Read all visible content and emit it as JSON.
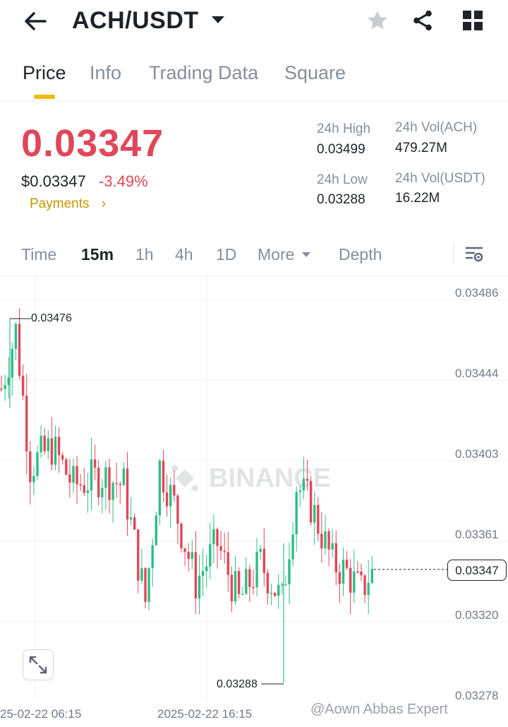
{
  "header": {
    "pair": "ACH/USDT"
  },
  "tabs": [
    {
      "label": "Price",
      "active": true
    },
    {
      "label": "Info",
      "active": false
    },
    {
      "label": "Trading Data",
      "active": false
    },
    {
      "label": "Square",
      "active": false
    }
  ],
  "price": {
    "last": "0.03347",
    "usd": "$0.03347",
    "change": "-3.49%",
    "payments": "Payments"
  },
  "stats": {
    "high_label": "24h High",
    "high": "0.03499",
    "low_label": "24h Low",
    "low": "0.03288",
    "vol_ach_label": "24h Vol(ACH)",
    "vol_ach": "479.27M",
    "vol_usdt_label": "24h Vol(USDT)",
    "vol_usdt": "16.22M"
  },
  "intervals": [
    {
      "label": "Time",
      "active": false
    },
    {
      "label": "15m",
      "active": true
    },
    {
      "label": "1h",
      "active": false
    },
    {
      "label": "4h",
      "active": false
    },
    {
      "label": "1D",
      "active": false
    },
    {
      "label": "More",
      "active": false
    },
    {
      "label": "Depth",
      "active": false
    }
  ],
  "chart": {
    "y_labels": [
      "0.03486",
      "0.03444",
      "0.03403",
      "0.03361",
      "0.03320",
      "0.03278"
    ],
    "x_labels": [
      "25-02-22 06:15",
      "2025-02-22 16:15"
    ],
    "current_price": "0.03347",
    "max_annotation": "0.03476",
    "min_annotation": "0.03288",
    "up_color": "#2ebd85",
    "down_color": "#e0475a",
    "watermark_logo": "BINANCE"
  },
  "watermark": "@Aown Abbas Expert"
}
